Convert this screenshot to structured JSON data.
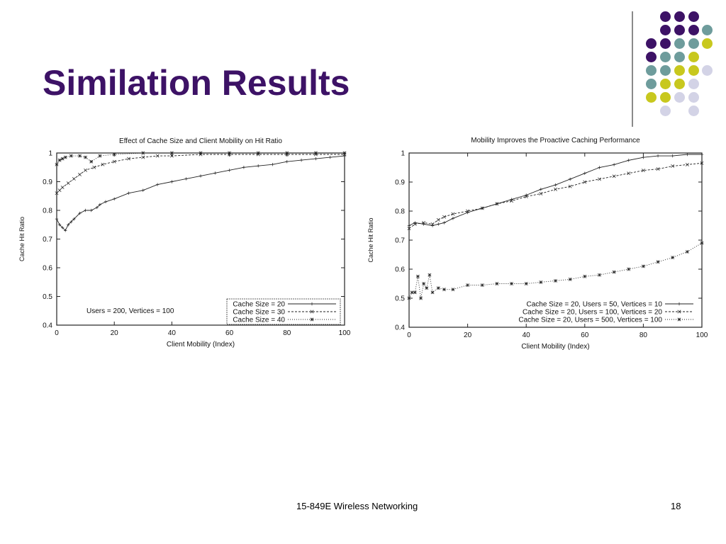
{
  "slide": {
    "title": "Similation Results",
    "footer_course": "15-849E Wireless Networking",
    "footer_page": "18",
    "dot_colors": {
      "purple": "#3d1266",
      "teal": "#6e9c9c",
      "yellow": "#c8c81e",
      "lavender": "#d3d3e6"
    }
  },
  "chart_data": [
    {
      "type": "line",
      "title": "Effect of Cache Size and Client Mobility on Hit Ratio",
      "xlabel": "Client Mobility (Index)",
      "ylabel": "Cache Hit Ratio",
      "xlim": [
        0,
        100
      ],
      "ylim": [
        0.4,
        1.0
      ],
      "xticks": [
        "0",
        "20",
        "40",
        "60",
        "80",
        "100"
      ],
      "yticks": [
        "0.4",
        "0.5",
        "0.6",
        "0.7",
        "0.8",
        "0.9",
        "1"
      ],
      "annotation": "Users = 200, Vertices = 100",
      "legend_position": "bottom-right",
      "grid": false,
      "series": [
        {
          "name": "Cache Size = 20",
          "x": [
            0,
            1,
            2,
            3,
            4,
            5,
            6,
            8,
            10,
            12,
            14,
            15,
            17,
            20,
            25,
            30,
            35,
            40,
            45,
            50,
            55,
            60,
            65,
            70,
            75,
            80,
            85,
            90,
            95,
            100
          ],
          "y": [
            0.77,
            0.75,
            0.74,
            0.73,
            0.75,
            0.76,
            0.77,
            0.79,
            0.8,
            0.8,
            0.81,
            0.82,
            0.83,
            0.84,
            0.86,
            0.87,
            0.89,
            0.9,
            0.91,
            0.92,
            0.93,
            0.94,
            0.95,
            0.955,
            0.96,
            0.97,
            0.975,
            0.98,
            0.985,
            0.99
          ]
        },
        {
          "name": "Cache Size = 30",
          "x": [
            0,
            1,
            2,
            4,
            6,
            8,
            10,
            13,
            16,
            20,
            25,
            30,
            35,
            40,
            50,
            60,
            70,
            80,
            90,
            100
          ],
          "y": [
            0.86,
            0.87,
            0.88,
            0.895,
            0.91,
            0.925,
            0.94,
            0.95,
            0.96,
            0.97,
            0.98,
            0.985,
            0.99,
            0.99,
            0.995,
            0.995,
            0.995,
            0.995,
            0.995,
            0.995
          ]
        },
        {
          "name": "Cache Size = 40",
          "x": [
            0,
            1,
            2,
            3,
            5,
            8,
            10,
            12,
            15,
            20,
            30,
            40,
            50,
            60,
            70,
            80,
            90,
            100
          ],
          "y": [
            0.96,
            0.975,
            0.98,
            0.985,
            0.99,
            0.99,
            0.985,
            0.97,
            0.99,
            0.995,
            1.0,
            1.0,
            1.0,
            1.0,
            1.0,
            1.0,
            1.0,
            1.0
          ]
        }
      ]
    },
    {
      "type": "line",
      "title": "Mobility Improves the Proactive Caching Performance",
      "xlabel": "Client Mobility (Index)",
      "ylabel": "Cache Hit Ratio",
      "xlim": [
        0,
        100
      ],
      "ylim": [
        0.4,
        1.0
      ],
      "xticks": [
        "0",
        "20",
        "40",
        "60",
        "80",
        "100"
      ],
      "yticks": [
        "0.4",
        "0.5",
        "0.6",
        "0.7",
        "0.8",
        "0.9",
        "1"
      ],
      "legend_position": "bottom-right",
      "grid": false,
      "series": [
        {
          "name": "Cache Size = 20, Users =  50, Vertices =  10",
          "x": [
            0,
            2,
            5,
            8,
            10,
            12,
            15,
            20,
            25,
            30,
            35,
            40,
            45,
            50,
            55,
            60,
            65,
            70,
            75,
            80,
            85,
            90,
            95,
            100
          ],
          "y": [
            0.75,
            0.76,
            0.755,
            0.75,
            0.755,
            0.76,
            0.775,
            0.795,
            0.81,
            0.825,
            0.84,
            0.855,
            0.875,
            0.89,
            0.91,
            0.93,
            0.95,
            0.96,
            0.975,
            0.985,
            0.99,
            0.99,
            0.995,
            0.995
          ]
        },
        {
          "name": "Cache Size = 20, Users = 100, Vertices =  20",
          "x": [
            0,
            2,
            5,
            8,
            10,
            12,
            15,
            20,
            25,
            30,
            35,
            40,
            45,
            50,
            55,
            60,
            65,
            70,
            75,
            80,
            85,
            90,
            95,
            100
          ],
          "y": [
            0.74,
            0.755,
            0.76,
            0.755,
            0.77,
            0.78,
            0.79,
            0.8,
            0.81,
            0.825,
            0.835,
            0.85,
            0.86,
            0.875,
            0.885,
            0.9,
            0.91,
            0.92,
            0.93,
            0.94,
            0.945,
            0.955,
            0.96,
            0.965
          ]
        },
        {
          "name": "Cache Size = 20, Users = 500, Vertices = 100",
          "x": [
            0,
            1,
            2,
            3,
            4,
            5,
            6,
            7,
            8,
            10,
            12,
            15,
            20,
            25,
            30,
            35,
            40,
            45,
            50,
            55,
            60,
            65,
            70,
            75,
            80,
            85,
            90,
            95,
            100
          ],
          "y": [
            0.5,
            0.52,
            0.52,
            0.575,
            0.5,
            0.55,
            0.535,
            0.58,
            0.52,
            0.535,
            0.53,
            0.53,
            0.545,
            0.545,
            0.55,
            0.55,
            0.55,
            0.555,
            0.56,
            0.565,
            0.575,
            0.58,
            0.59,
            0.6,
            0.61,
            0.625,
            0.64,
            0.66,
            0.69
          ]
        }
      ]
    }
  ]
}
